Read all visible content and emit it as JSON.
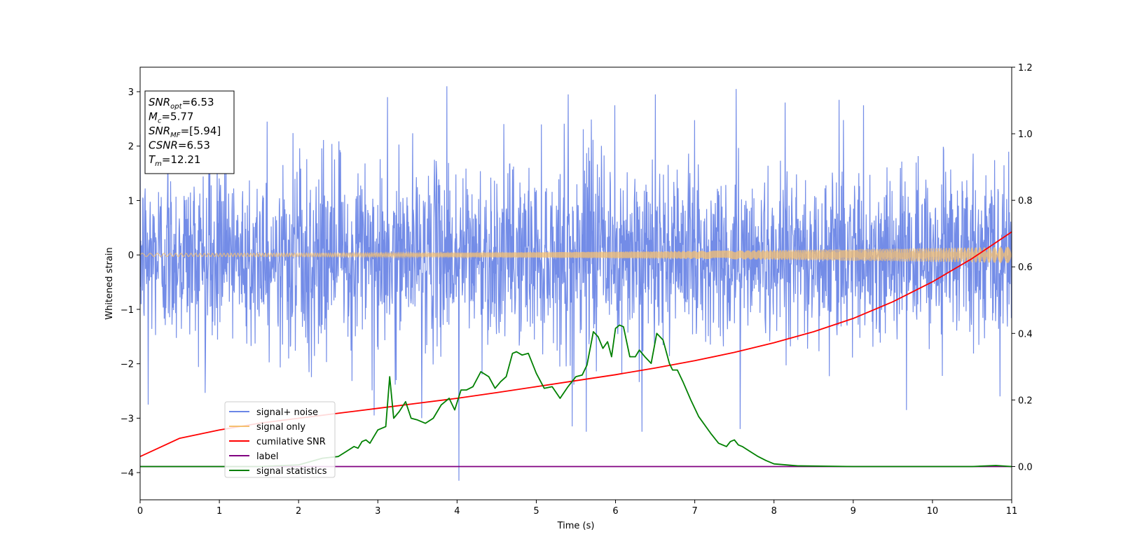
{
  "chart_data": {
    "type": "line",
    "xlabel": "Time (s)",
    "ylabel": "Whitened strain",
    "xlim": [
      0,
      11
    ],
    "ylim": [
      -4.5,
      3.45
    ],
    "y2lim": [
      -0.1,
      1.2
    ],
    "x_ticks": [
      "0",
      "1",
      "2",
      "3",
      "4",
      "5",
      "6",
      "7",
      "8",
      "9",
      "10",
      "11"
    ],
    "y_ticks": [
      "3",
      "2",
      "1",
      "0",
      "−1",
      "−2",
      "−3",
      "−4"
    ],
    "y2_ticks": [
      "1.2",
      "1.0",
      "0.8",
      "0.6",
      "0.4",
      "0.2",
      "0.0"
    ],
    "legend_position": "lower-left",
    "annotation": [
      {
        "base": "SNR",
        "sub": "opt",
        "rest": "=6.53"
      },
      {
        "base": "M",
        "sub": "c",
        "rest": "=5.77"
      },
      {
        "base": "SNR",
        "sub": "MF",
        "rest": "=[5.94]"
      },
      {
        "base": "CSNR",
        "sub": "",
        "rest": "=6.53"
      },
      {
        "base": "T",
        "sub": "m",
        "rest": "=12.21"
      }
    ],
    "series": [
      {
        "name": "signal+ noise",
        "color": "#6b86e6",
        "axis": "left",
        "kind": "noise",
        "noise_std": 0.8,
        "peak_values": [
          {
            "x": 0.1,
            "y": -2.75
          },
          {
            "x": 0.35,
            "y": 2.35
          },
          {
            "x": 1.08,
            "y": 2.45
          },
          {
            "x": 1.6,
            "y": 2.45
          },
          {
            "x": 2.95,
            "y": -2.95
          },
          {
            "x": 3.12,
            "y": 2.9
          },
          {
            "x": 3.55,
            "y": -3.0
          },
          {
            "x": 3.87,
            "y": 3.1
          },
          {
            "x": 4.02,
            "y": -4.15
          },
          {
            "x": 5.4,
            "y": 2.95
          },
          {
            "x": 5.45,
            "y": -3.15
          },
          {
            "x": 5.63,
            "y": -3.25
          },
          {
            "x": 5.99,
            "y": 2.75
          },
          {
            "x": 6.33,
            "y": -3.25
          },
          {
            "x": 6.5,
            "y": 2.95
          },
          {
            "x": 7.52,
            "y": 3.05
          },
          {
            "x": 7.57,
            "y": -3.2
          },
          {
            "x": 8.14,
            "y": 2.8
          },
          {
            "x": 8.82,
            "y": 2.85
          },
          {
            "x": 9.13,
            "y": 2.75
          },
          {
            "x": 9.67,
            "y": -2.85
          },
          {
            "x": 10.85,
            "y": -2.6
          }
        ]
      },
      {
        "name": "signal only",
        "color": "#f5c070",
        "axis": "left",
        "kind": "chirp",
        "amplitude_start": 0.03,
        "amplitude_end": 0.15
      },
      {
        "name": "cumilative SNR",
        "color": "#ff0000",
        "axis": "right",
        "kind": "line",
        "x": [
          0,
          0.5,
          1,
          1.5,
          2,
          2.5,
          3,
          3.5,
          4,
          4.5,
          5,
          5.5,
          6,
          6.5,
          7,
          7.5,
          8,
          8.5,
          9,
          9.5,
          10,
          10.5,
          11
        ],
        "values": [
          0.03,
          0.085,
          0.11,
          0.13,
          0.145,
          0.16,
          0.175,
          0.19,
          0.205,
          0.222,
          0.24,
          0.258,
          0.276,
          0.296,
          0.318,
          0.343,
          0.372,
          0.405,
          0.445,
          0.495,
          0.555,
          0.625,
          0.705
        ]
      },
      {
        "name": "label",
        "color": "#800080",
        "axis": "right",
        "kind": "line",
        "x": [
          0,
          11
        ],
        "values": [
          0.0,
          0.0
        ]
      },
      {
        "name": "signal statistics",
        "color": "#008000",
        "axis": "right",
        "kind": "line",
        "x": [
          0,
          0.5,
          1,
          1.5,
          2,
          2.3,
          2.5,
          2.6,
          2.7,
          2.75,
          2.8,
          2.85,
          2.9,
          2.95,
          3.0,
          3.05,
          3.1,
          3.15,
          3.2,
          3.27,
          3.35,
          3.42,
          3.5,
          3.6,
          3.7,
          3.8,
          3.9,
          3.97,
          4.05,
          4.12,
          4.2,
          4.3,
          4.4,
          4.48,
          4.55,
          4.62,
          4.7,
          4.75,
          4.82,
          4.9,
          5.0,
          5.1,
          5.2,
          5.3,
          5.4,
          5.5,
          5.58,
          5.64,
          5.72,
          5.78,
          5.84,
          5.9,
          5.95,
          6.0,
          6.05,
          6.1,
          6.18,
          6.25,
          6.3,
          6.37,
          6.45,
          6.52,
          6.6,
          6.68,
          6.72,
          6.78,
          6.85,
          6.95,
          7.05,
          7.2,
          7.3,
          7.4,
          7.45,
          7.5,
          7.55,
          7.6,
          7.7,
          7.8,
          7.9,
          8.0,
          8.3,
          9.0,
          10.0,
          10.5,
          10.8,
          11.0
        ],
        "values": [
          0.0,
          0.0,
          0.0,
          0.0,
          0.005,
          0.025,
          0.03,
          0.045,
          0.06,
          0.055,
          0.075,
          0.08,
          0.07,
          0.09,
          0.11,
          0.115,
          0.12,
          0.27,
          0.145,
          0.165,
          0.195,
          0.145,
          0.14,
          0.13,
          0.145,
          0.185,
          0.205,
          0.17,
          0.23,
          0.23,
          0.24,
          0.285,
          0.27,
          0.235,
          0.255,
          0.27,
          0.34,
          0.345,
          0.335,
          0.34,
          0.28,
          0.235,
          0.24,
          0.205,
          0.24,
          0.27,
          0.275,
          0.305,
          0.405,
          0.39,
          0.355,
          0.375,
          0.33,
          0.415,
          0.425,
          0.42,
          0.33,
          0.33,
          0.35,
          0.33,
          0.31,
          0.4,
          0.38,
          0.31,
          0.29,
          0.29,
          0.255,
          0.2,
          0.15,
          0.1,
          0.07,
          0.06,
          0.075,
          0.08,
          0.065,
          0.06,
          0.045,
          0.03,
          0.018,
          0.008,
          0.002,
          0.0,
          0.0,
          0.0,
          0.003,
          0.0
        ]
      }
    ]
  }
}
